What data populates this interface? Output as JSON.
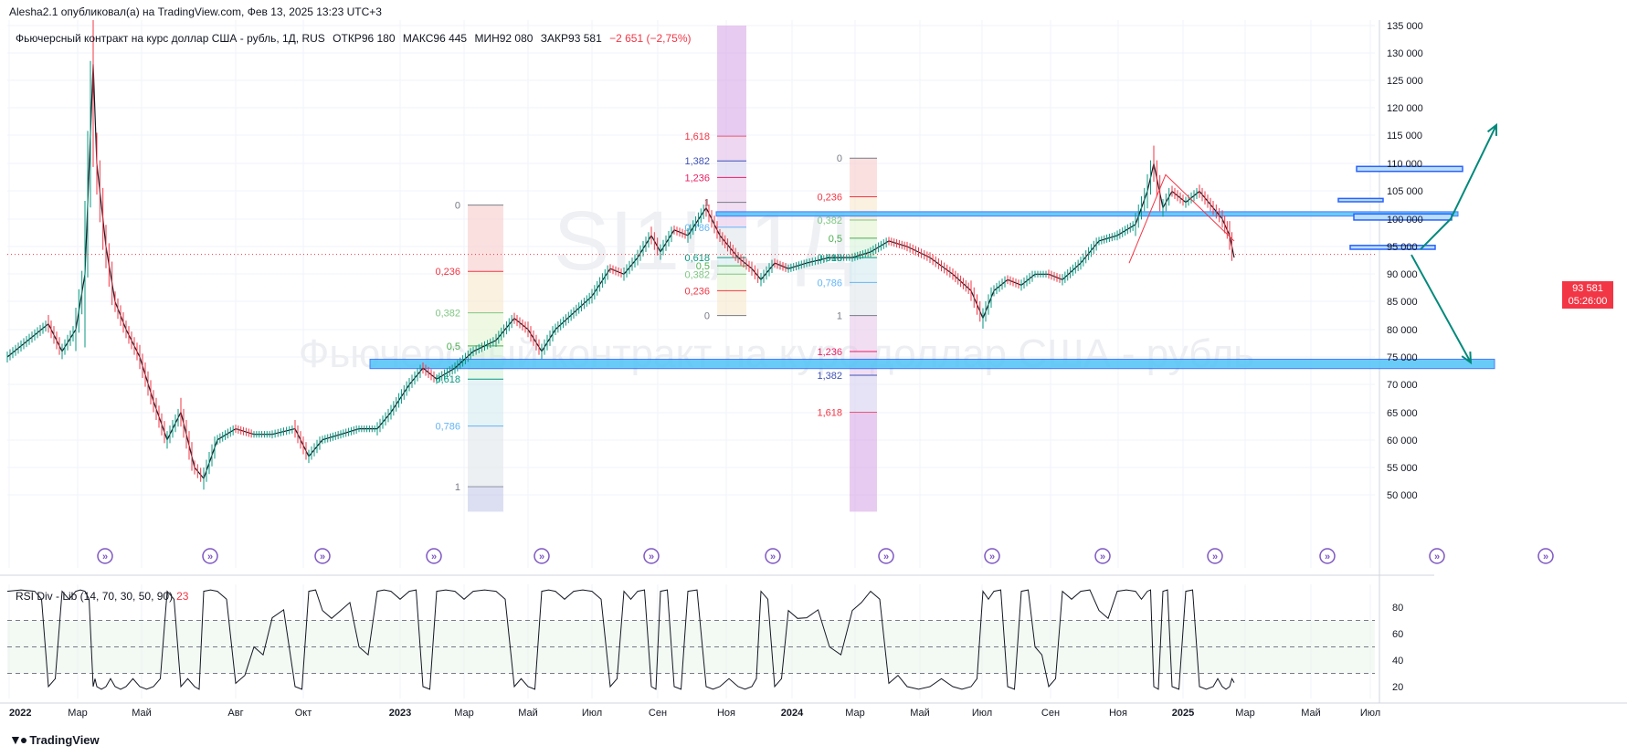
{
  "header": {
    "publisher": "Alesha2.1 опубликовал(а) на TradingView.com, Фев 13, 2025 13:23 UTC+3"
  },
  "symbol": {
    "title": "Фьючерсный контракт на курс доллар США - рубль, 1Д, RUS",
    "open": "ОТКР96 180",
    "high": "МАКС96 445",
    "low": "МИН92 080",
    "close": "ЗАКР93 581",
    "change": "−2 651 (−2,75%)"
  },
  "watermark": {
    "ticker": "SI1!, 1Д",
    "name": "Фьючерсный контракт на курс доллар США - рубль"
  },
  "price_tag": {
    "price": "93 581",
    "countdown": "05:26:00"
  },
  "rsi": {
    "label": "RSI Div - Lib (14, 70, 30, 50, 90)",
    "value": "23"
  },
  "branding": {
    "logo_text": "TradingView"
  },
  "colors": {
    "up": "#089981",
    "down": "#f23645",
    "accent_zone": "#4fc3f7",
    "grid": "#f0f3fa"
  },
  "chart_data": [
    {
      "type": "candlestick",
      "ylim": [
        47000,
        137000
      ],
      "yticks": [
        135000,
        130000,
        125000,
        120000,
        115000,
        110000,
        105000,
        100000,
        95000,
        90000,
        85000,
        80000,
        75000,
        70000,
        65000,
        60000,
        55000,
        50000
      ],
      "ytick_labels": [
        "135 000",
        "130 000",
        "125 000",
        "120 000",
        "115 000",
        "110 000",
        "105 000",
        "100 000",
        "95 000",
        "90 000",
        "85 000",
        "80 000",
        "75 000",
        "70 000",
        "65 000",
        "60 000",
        "55 000",
        "50 000"
      ],
      "xtick_labels": [
        "2022",
        "Мар",
        "Май",
        "Авг",
        "Окт",
        "2023",
        "Мар",
        "Май",
        "Июл",
        "Сен",
        "Ноя",
        "2024",
        "Мар",
        "Май",
        "Июл",
        "Сен",
        "Ноя",
        "2025",
        "Мар",
        "Май",
        "Июл"
      ],
      "price_path": [
        [
          0,
          75000
        ],
        [
          30,
          79000
        ],
        [
          45,
          81000
        ],
        [
          60,
          76000
        ],
        [
          75,
          80000
        ],
        [
          85,
          90000
        ],
        [
          94,
          128000
        ],
        [
          98,
          110000
        ],
        [
          108,
          95000
        ],
        [
          118,
          85000
        ],
        [
          130,
          80000
        ],
        [
          145,
          75000
        ],
        [
          160,
          67000
        ],
        [
          175,
          60000
        ],
        [
          190,
          65000
        ],
        [
          205,
          55000
        ],
        [
          215,
          53000
        ],
        [
          230,
          60000
        ],
        [
          250,
          62000
        ],
        [
          270,
          61000
        ],
        [
          290,
          61000
        ],
        [
          315,
          62000
        ],
        [
          330,
          57000
        ],
        [
          345,
          60000
        ],
        [
          365,
          61000
        ],
        [
          385,
          62000
        ],
        [
          405,
          62000
        ],
        [
          420,
          65000
        ],
        [
          440,
          70000
        ],
        [
          455,
          73000
        ],
        [
          470,
          71000
        ],
        [
          490,
          73000
        ],
        [
          510,
          76000
        ],
        [
          535,
          78000
        ],
        [
          555,
          82000
        ],
        [
          570,
          80000
        ],
        [
          585,
          76000
        ],
        [
          600,
          80000
        ],
        [
          620,
          83000
        ],
        [
          640,
          86000
        ],
        [
          660,
          91000
        ],
        [
          675,
          90000
        ],
        [
          690,
          93000
        ],
        [
          705,
          97000
        ],
        [
          715,
          94000
        ],
        [
          730,
          98000
        ],
        [
          745,
          97000
        ],
        [
          765,
          102000
        ],
        [
          780,
          97000
        ],
        [
          800,
          93000
        ],
        [
          815,
          91000
        ],
        [
          825,
          89000
        ],
        [
          840,
          92000
        ],
        [
          855,
          91000
        ],
        [
          875,
          92000
        ],
        [
          900,
          93000
        ],
        [
          925,
          93000
        ],
        [
          945,
          94000
        ],
        [
          965,
          96000
        ],
        [
          985,
          95000
        ],
        [
          1010,
          93000
        ],
        [
          1035,
          90000
        ],
        [
          1055,
          87000
        ],
        [
          1068,
          82000
        ],
        [
          1080,
          87000
        ],
        [
          1095,
          89000
        ],
        [
          1110,
          88000
        ],
        [
          1125,
          90000
        ],
        [
          1140,
          90000
        ],
        [
          1155,
          89000
        ],
        [
          1175,
          92000
        ],
        [
          1195,
          96000
        ],
        [
          1215,
          97000
        ],
        [
          1235,
          99000
        ],
        [
          1248,
          105000
        ],
        [
          1255,
          110000
        ],
        [
          1265,
          102000
        ],
        [
          1275,
          105000
        ],
        [
          1290,
          103000
        ],
        [
          1305,
          105000
        ],
        [
          1320,
          102000
        ],
        [
          1330,
          100000
        ],
        [
          1338,
          97000
        ],
        [
          1343,
          93000
        ]
      ]
    },
    {
      "type": "line",
      "title": "RSI Div - Lib (14, 70, 30, 50, 90)",
      "ylim": [
        15,
        97
      ],
      "yticks": [
        80,
        60,
        40,
        20
      ],
      "levels": [
        70,
        50,
        30
      ],
      "last": 23
    },
    {
      "type": "annotations",
      "fib_levels": [
        "0",
        "0,236",
        "0,382",
        "0,5",
        "0,618",
        "0,786",
        "1",
        "1,236",
        "1,382",
        "1,618"
      ],
      "fib_levels_1": [
        {
          "label": "0",
          "y": 102500
        },
        {
          "label": "0,236",
          "y": 90500
        },
        {
          "label": "0,382",
          "y": 83000
        },
        {
          "label": "0,5",
          "y": 77000
        },
        {
          "label": "0,618",
          "y": 71000
        },
        {
          "label": "0,786",
          "y": 62500
        },
        {
          "label": "1",
          "y": 51500
        }
      ],
      "fib_levels_2": [
        {
          "label": "0",
          "y": 82500
        },
        {
          "label": "0,236",
          "y": 87000
        },
        {
          "label": "0,382",
          "y": 90000
        },
        {
          "label": "0,5",
          "y": 91500
        },
        {
          "label": "0,618",
          "y": 93000
        },
        {
          "label": "0,786",
          "y": 98500
        },
        {
          "label": "1",
          "y": 103000
        },
        {
          "label": "1,236",
          "y": 107500
        },
        {
          "label": "1,382",
          "y": 110500
        },
        {
          "label": "1,618",
          "y": 115000
        }
      ],
      "fib_levels_3": [
        {
          "label": "0",
          "y": 111000
        },
        {
          "label": "0,236",
          "y": 104000
        },
        {
          "label": "0,382",
          "y": 99800
        },
        {
          "label": "0,5",
          "y": 96500
        },
        {
          "label": "0,618",
          "y": 93000
        },
        {
          "label": "0,786",
          "y": 88500
        },
        {
          "label": "1",
          "y": 82500
        },
        {
          "label": "1,236",
          "y": 76000
        },
        {
          "label": "1,382",
          "y": 71700
        },
        {
          "label": "1,618",
          "y": 65000
        }
      ],
      "zones": [
        {
          "from": 72900,
          "to": 74600
        },
        {
          "from": 100500,
          "to": 101300
        }
      ],
      "boxes": [
        {
          "from": 108600,
          "to": 109500
        },
        {
          "from": 103100,
          "to": 103700
        },
        {
          "from": 99800,
          "to": 100900
        },
        {
          "from": 94500,
          "to": 95200
        }
      ]
    }
  ]
}
